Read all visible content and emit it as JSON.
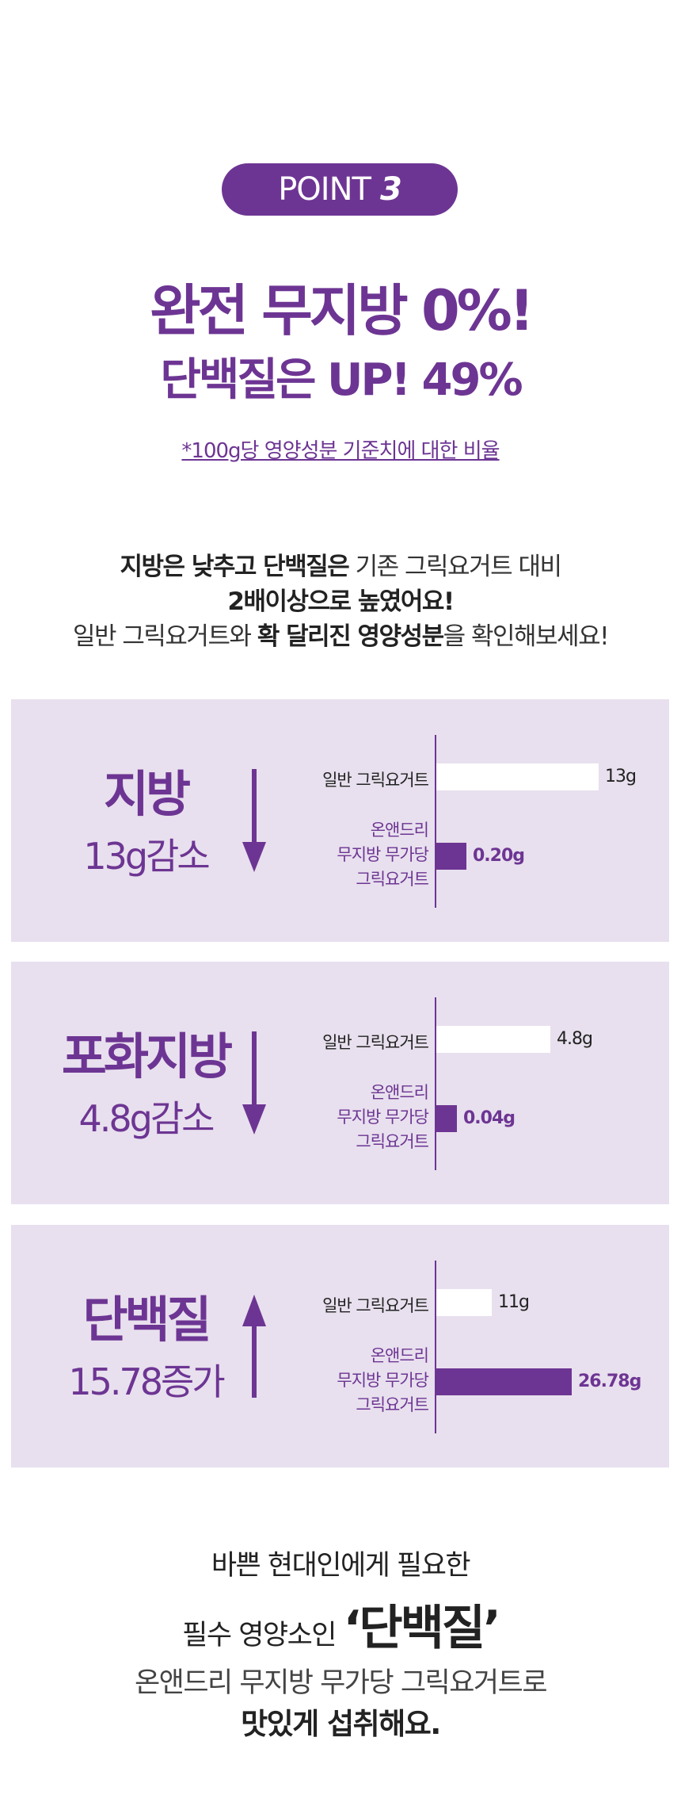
{
  "badge": {
    "label": "POINT",
    "number": "3"
  },
  "headline": {
    "line1": "완전 무지방 0%!",
    "line2": "단백질은 UP! 49%"
  },
  "footnote": "*100g당 영양성분 기준치에 대한 비율",
  "intro": {
    "line1_bold": "지방은 낮추고 단백질은",
    "line1_rest": " 기존 그릭요거트 대비",
    "line2": "2배이상으로 높였어요!",
    "line3_a": "일반 그릭요거트와 ",
    "line3_bold": "확 달리진 영양성분",
    "line3_b": "을 확인해보세요!"
  },
  "colors": {
    "accent": "#6d3593",
    "panel_bg": "#e8e0ee"
  },
  "panels": [
    {
      "title": "지방",
      "change": "13g감소",
      "direction": "down",
      "regular_label": "일반 그릭요거트",
      "product_label": [
        "온앤드리",
        "무지방 무가당",
        "그릭요거트"
      ],
      "regular_value": "13g",
      "product_value": "0.20g"
    },
    {
      "title": "포화지방",
      "change": "4.8g감소",
      "direction": "down",
      "regular_label": "일반 그릭요거트",
      "product_label": [
        "온앤드리",
        "무지방 무가당",
        "그릭요거트"
      ],
      "regular_value": "4.8g",
      "product_value": "0.04g"
    },
    {
      "title": "단백질",
      "change": "15.78증가",
      "direction": "up",
      "regular_label": "일반 그릭요거트",
      "product_label": [
        "온앤드리",
        "무지방 무가당",
        "그릭요거트"
      ],
      "regular_value": "11g",
      "product_value": "26.78g"
    }
  ],
  "closing": {
    "line1": "바쁜 현대인에게 필요한",
    "line2_a": "필수 영양소인 ",
    "line2_bold": "‘단백질’",
    "line3": "온앤드리 무지방 무가당 그릭요거트로",
    "line4": "맛있게 섭취해요."
  }
}
